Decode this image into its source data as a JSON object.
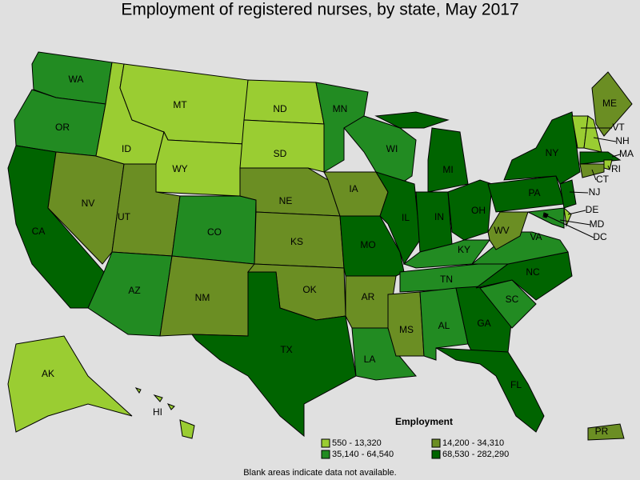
{
  "title": "Employment of registered nurses, by state, May 2017",
  "legend": {
    "title": "Employment",
    "items": [
      {
        "label": "550 - 13,320",
        "color": "#9acd32"
      },
      {
        "label": "14,200 - 34,310",
        "color": "#6b8e23"
      },
      {
        "label": "35,140 - 64,540",
        "color": "#228b22"
      },
      {
        "label": "68,530 - 282,290",
        "color": "#006400"
      }
    ]
  },
  "states": [
    {
      "label": "WA",
      "color": "#228b22"
    },
    {
      "label": "OR",
      "color": "#228b22"
    },
    {
      "label": "CA",
      "color": "#006400"
    },
    {
      "label": "NV",
      "color": "#6b8e23"
    },
    {
      "label": "ID",
      "color": "#9acd32"
    },
    {
      "label": "MT",
      "color": "#9acd32"
    },
    {
      "label": "WY",
      "color": "#9acd32"
    },
    {
      "label": "UT",
      "color": "#6b8e23"
    },
    {
      "label": "AZ",
      "color": "#228b22"
    },
    {
      "label": "CO",
      "color": "#228b22"
    },
    {
      "label": "NM",
      "color": "#6b8e23"
    },
    {
      "label": "ND",
      "color": "#9acd32"
    },
    {
      "label": "SD",
      "color": "#9acd32"
    },
    {
      "label": "NE",
      "color": "#6b8e23"
    },
    {
      "label": "KS",
      "color": "#6b8e23"
    },
    {
      "label": "OK",
      "color": "#6b8e23"
    },
    {
      "label": "TX",
      "color": "#006400"
    },
    {
      "label": "MN",
      "color": "#228b22"
    },
    {
      "label": "IA",
      "color": "#6b8e23"
    },
    {
      "label": "MO",
      "color": "#006400"
    },
    {
      "label": "AR",
      "color": "#6b8e23"
    },
    {
      "label": "LA",
      "color": "#228b22"
    },
    {
      "label": "WI",
      "color": "#228b22"
    },
    {
      "label": "IL",
      "color": "#006400"
    },
    {
      "label": "MI",
      "color": "#006400"
    },
    {
      "label": "IN",
      "color": "#006400"
    },
    {
      "label": "OH",
      "color": "#006400"
    },
    {
      "label": "KY",
      "color": "#228b22"
    },
    {
      "label": "TN",
      "color": "#228b22"
    },
    {
      "label": "MS",
      "color": "#6b8e23"
    },
    {
      "label": "AL",
      "color": "#228b22"
    },
    {
      "label": "GA",
      "color": "#006400"
    },
    {
      "label": "FL",
      "color": "#006400"
    },
    {
      "label": "SC",
      "color": "#228b22"
    },
    {
      "label": "NC",
      "color": "#006400"
    },
    {
      "label": "VA",
      "color": "#228b22"
    },
    {
      "label": "WV",
      "color": "#6b8e23"
    },
    {
      "label": "PA",
      "color": "#006400"
    },
    {
      "label": "NY",
      "color": "#006400"
    },
    {
      "label": "VT",
      "color": "#9acd32"
    },
    {
      "label": "NH",
      "color": "#9acd32"
    },
    {
      "label": "ME",
      "color": "#6b8e23"
    },
    {
      "label": "MA",
      "color": "#006400"
    },
    {
      "label": "RI",
      "color": "#9acd32"
    },
    {
      "label": "CT",
      "color": "#6b8e23"
    },
    {
      "label": "NJ",
      "color": "#006400"
    },
    {
      "label": "DE",
      "color": "#9acd32"
    },
    {
      "label": "MD",
      "color": "#228b22"
    },
    {
      "label": "DC",
      "color": "#9acd32"
    },
    {
      "label": "AK",
      "color": "#9acd32"
    },
    {
      "label": "HI",
      "color": "#9acd32"
    },
    {
      "label": "PR",
      "color": "#6b8e23"
    }
  ],
  "footnote": "Blank areas indicate data not available."
}
